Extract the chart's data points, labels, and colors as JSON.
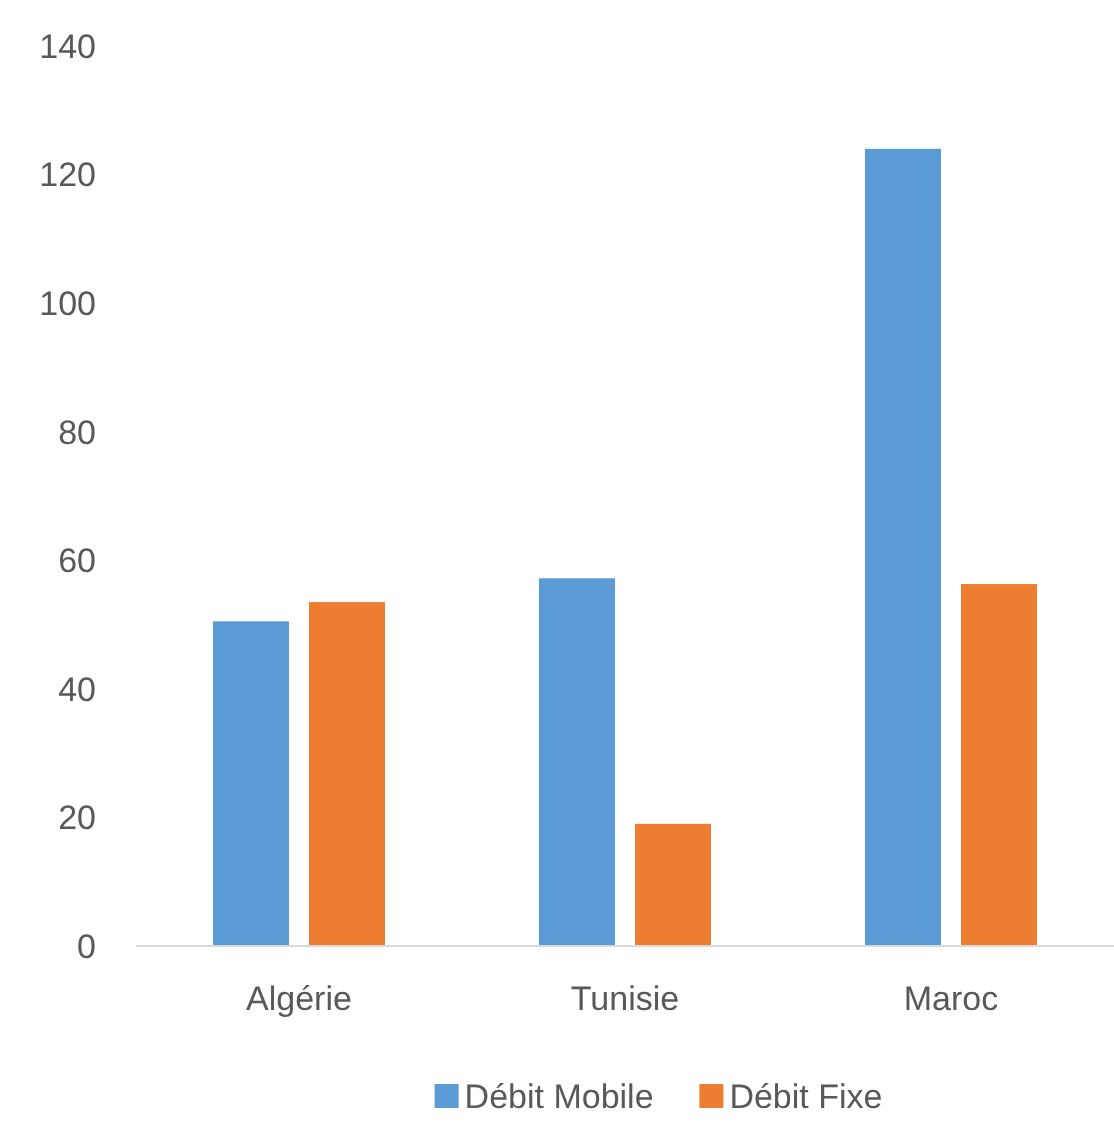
{
  "chart_data": {
    "type": "bar",
    "categories": [
      "Algérie",
      "Tunisie",
      "Maroc"
    ],
    "series": [
      {
        "name": "Débit Mobile",
        "color": "#5b9bd5",
        "values": [
          50.5,
          57.2,
          124
        ]
      },
      {
        "name": "Débit Fixe",
        "color": "#ed7d31",
        "values": [
          53.5,
          19,
          56.3
        ]
      }
    ],
    "ylim": [
      0,
      140
    ],
    "yticks": [
      0,
      20,
      40,
      60,
      80,
      100,
      120,
      140
    ],
    "grid": false,
    "legend": "bottom"
  }
}
